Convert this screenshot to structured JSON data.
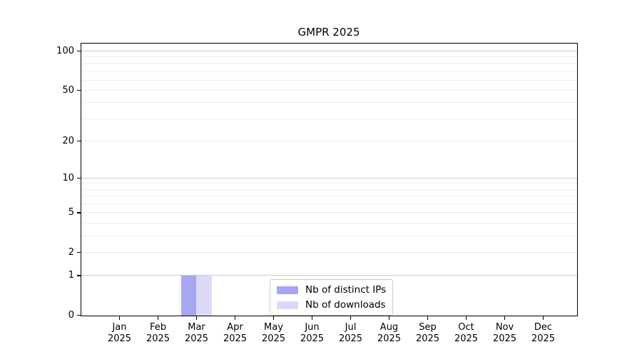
{
  "chart_data": {
    "type": "bar",
    "title": "GMPR 2025",
    "categories": [
      "Jan 2025",
      "Feb 2025",
      "Mar 2025",
      "Apr 2025",
      "May 2025",
      "Jun 2025",
      "Jul 2025",
      "Aug 2025",
      "Sep 2025",
      "Oct 2025",
      "Nov 2025",
      "Dec 2025"
    ],
    "series": [
      {
        "name": "Nb of distinct IPs",
        "color": "#a6a6f2",
        "values": [
          0,
          0,
          1,
          0,
          0,
          0,
          0,
          0,
          0,
          0,
          0,
          0
        ]
      },
      {
        "name": "Nb of downloads",
        "color": "#dadaf8",
        "values": [
          0,
          0,
          1,
          0,
          0,
          0,
          0,
          0,
          0,
          0,
          0,
          0
        ]
      }
    ],
    "xlabel": "",
    "ylabel": "",
    "yticks": [
      0,
      1,
      2,
      5,
      10,
      20,
      50,
      100
    ],
    "y_scale": "log1p",
    "ylim": [
      0,
      113
    ],
    "grid": {
      "horizontal": true,
      "major_values": [
        1,
        10,
        100
      ],
      "minor_values": [
        2,
        3,
        4,
        5,
        6,
        7,
        8,
        9,
        20,
        30,
        40,
        50,
        60,
        70,
        80,
        90
      ],
      "major_color": "#c9c9c9",
      "minor_color": "#ededed"
    },
    "legend": {
      "position": "bottom-center"
    },
    "colors": {
      "axis": "#000000",
      "background": "#ffffff",
      "legend_border": "#cccccc"
    }
  }
}
